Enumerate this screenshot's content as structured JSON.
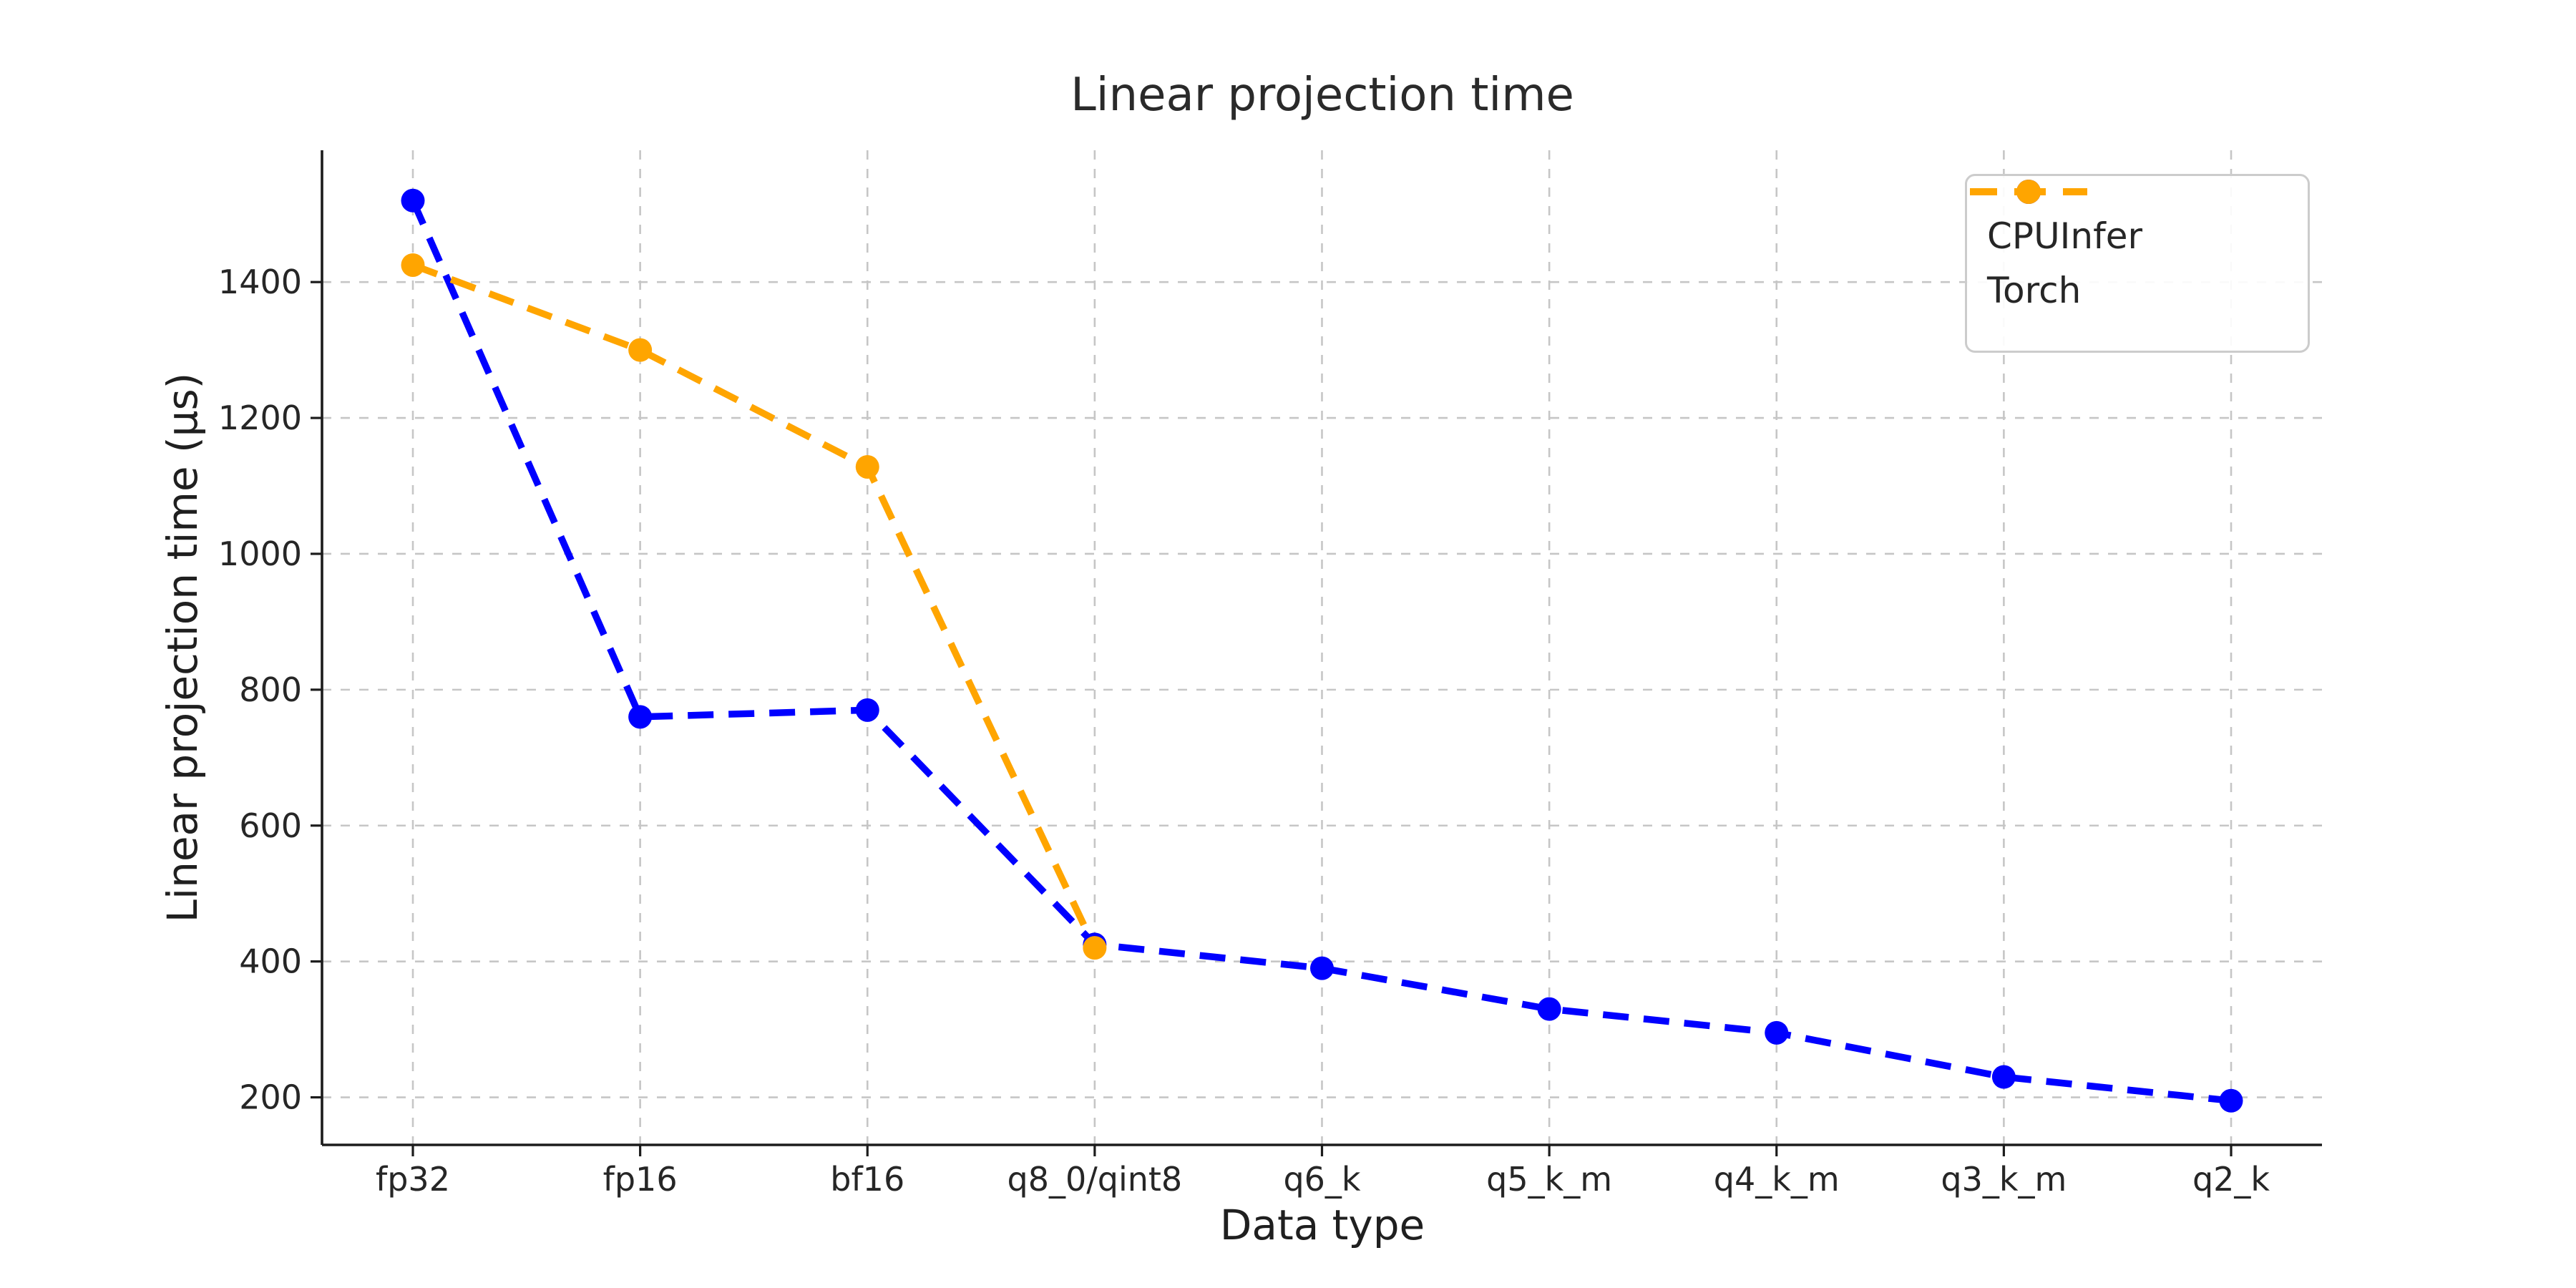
{
  "figure": {
    "title": "Linear projection time",
    "x_axis_label": "Data type",
    "y_axis_label": "Linear projection time (μs)"
  },
  "legend": {
    "position": "upper right",
    "items": [
      {
        "label": "CPUInfer",
        "color": "#0000ff"
      },
      {
        "label": "Torch",
        "color": "#ffa500"
      }
    ]
  },
  "chart_data": {
    "type": "line",
    "title": "Linear projection time",
    "xlabel": "Data type",
    "ylabel": "Linear projection time (μs)",
    "categories": [
      "fp32",
      "fp16",
      "bf16",
      "q8_0/qint8",
      "q6_k",
      "q5_k_m",
      "q4_k_m",
      "q3_k_m",
      "q2_k"
    ],
    "series": [
      {
        "name": "CPUInfer",
        "color": "#0000ff",
        "values": [
          1520,
          760,
          770,
          425,
          390,
          330,
          295,
          230,
          195
        ]
      },
      {
        "name": "Torch",
        "color": "#ffa500",
        "values": [
          1425,
          1300,
          1128,
          420,
          null,
          null,
          null,
          null,
          null
        ]
      }
    ],
    "y_ticks": [
      200,
      400,
      600,
      800,
      1000,
      1200,
      1400
    ],
    "ylim": [
      130,
      1594
    ],
    "grid": true,
    "grid_color": "#c6c6c6",
    "spine_color": "#1c1c1c",
    "line_style": "dashed",
    "marker": "circle",
    "legend_position": "upper right"
  }
}
